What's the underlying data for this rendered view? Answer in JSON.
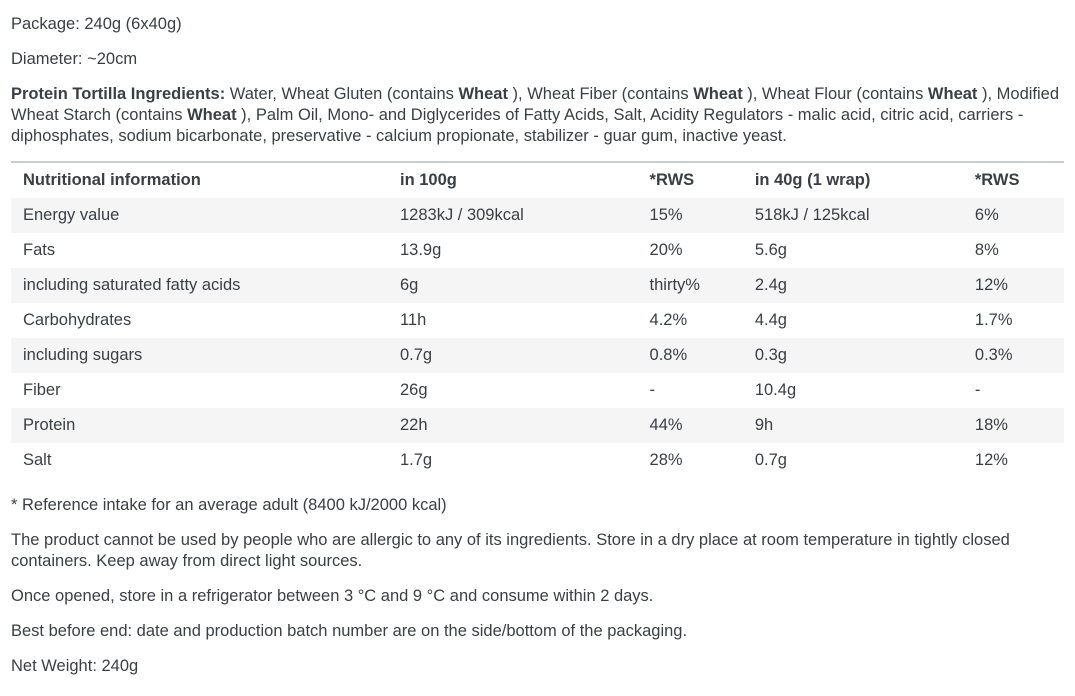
{
  "page": {
    "package": "Package: 240g (6x40g)",
    "diameter": "Diameter: ~20cm"
  },
  "ingredients": {
    "segments": [
      {
        "t": "Protein Tortilla Ingredients: ",
        "b": true
      },
      {
        "t": " Water, Wheat Gluten (contains ",
        "b": false
      },
      {
        "t": "Wheat",
        "b": true
      },
      {
        "t": " ), Wheat Fiber (contains ",
        "b": false
      },
      {
        "t": "Wheat",
        "b": true
      },
      {
        "t": " ), Wheat Flour (contains ",
        "b": false
      },
      {
        "t": "Wheat",
        "b": true
      },
      {
        "t": " ), Modified Wheat Starch (contains ",
        "b": false
      },
      {
        "t": "Wheat",
        "b": true
      },
      {
        "t": " ), Palm Oil, Mono- and Diglycerides of Fatty Acids, Salt, Acidity Regulators - malic acid, citric acid, carriers - diphosphates, sodium bicarbonate, preservative - calcium propionate, stabilizer - guar gum, inactive yeast.",
        "b": false
      }
    ]
  },
  "table": {
    "headers": [
      "Nutritional information",
      "in 100g",
      "*RWS",
      "in 40g (1 wrap)",
      "*RWS"
    ],
    "rows": [
      [
        "Energy value",
        "1283kJ / 309kcal",
        "15%",
        "518kJ / 125kcal",
        "6%"
      ],
      [
        "Fats",
        "13.9g",
        "20%",
        "5.6g",
        "8%"
      ],
      [
        "including saturated fatty acids",
        "6g",
        "thirty%",
        "2.4g",
        "12%"
      ],
      [
        "Carbohydrates",
        "11h",
        "4.2%",
        "4.4g",
        "1.7%"
      ],
      [
        "including sugars",
        "0.7g",
        "0.8%",
        "0.3g",
        "0.3%"
      ],
      [
        "Fiber",
        "26g",
        "-",
        "10.4g",
        "-"
      ],
      [
        "Protein",
        "22h",
        "44%",
        "9h",
        "18%"
      ],
      [
        "Salt",
        "1.7g",
        "28%",
        "0.7g",
        "12%"
      ]
    ],
    "footnote": "* Reference intake for an average adult (8400 kJ/2000 kcal)"
  },
  "notes": {
    "allergy_storage": "The product cannot be used by people who are allergic to any of its ingredients. Store in a dry place at room temperature in tightly closed containers. Keep away from direct light sources.",
    "refrigeration": "Once opened, store in a refrigerator between 3 °C  and 9 °C and consume within 2 days.",
    "best_before": "Best before end: date and production batch number are on the side/bottom of the packaging.",
    "net_weight": "Net Weight: 240g"
  },
  "colors": {
    "text": "#3a3f44",
    "row_stripe": "#f5f5f6",
    "table_top_rule": "#c9ccce"
  }
}
